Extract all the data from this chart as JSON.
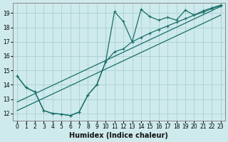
{
  "xlabel": "Humidex (Indice chaleur)",
  "bg_color": "#ceeaec",
  "grid_color": "#aacfd4",
  "line_color": "#1a6e68",
  "xlim": [
    -0.5,
    23.5
  ],
  "ylim": [
    11.5,
    19.7
  ],
  "xticks": [
    0,
    1,
    2,
    3,
    4,
    5,
    6,
    7,
    8,
    9,
    10,
    11,
    12,
    13,
    14,
    15,
    16,
    17,
    18,
    19,
    20,
    21,
    22,
    23
  ],
  "yticks": [
    12,
    13,
    14,
    15,
    16,
    17,
    18,
    19
  ],
  "series1_x": [
    0,
    1,
    2,
    3,
    4,
    5,
    6,
    7,
    8,
    9,
    10,
    11,
    12,
    13,
    14,
    15,
    16,
    17,
    18,
    19,
    20,
    21,
    22,
    23
  ],
  "series1_y": [
    14.6,
    13.8,
    13.5,
    12.2,
    12.0,
    11.95,
    11.85,
    12.1,
    13.3,
    14.0,
    15.6,
    19.1,
    18.4,
    17.0,
    19.25,
    18.75,
    18.5,
    18.7,
    18.5,
    19.2,
    18.85,
    19.15,
    19.35,
    19.55
  ],
  "series2_x": [
    0,
    1,
    2,
    3,
    4,
    5,
    6,
    7,
    8,
    9,
    10,
    11,
    12,
    13,
    14,
    15,
    16,
    17,
    18,
    19,
    20,
    21,
    22,
    23
  ],
  "series2_y": [
    14.6,
    13.8,
    13.5,
    12.2,
    12.0,
    11.95,
    11.85,
    12.1,
    13.3,
    14.0,
    15.6,
    16.3,
    16.5,
    17.0,
    17.3,
    17.6,
    17.85,
    18.1,
    18.35,
    18.6,
    18.85,
    19.05,
    19.3,
    19.5
  ],
  "reg1_start_y": 12.8,
  "reg1_end_y": 19.45,
  "reg2_start_y": 12.2,
  "reg2_end_y": 18.85,
  "marker_size": 2.5,
  "linewidth": 0.9
}
